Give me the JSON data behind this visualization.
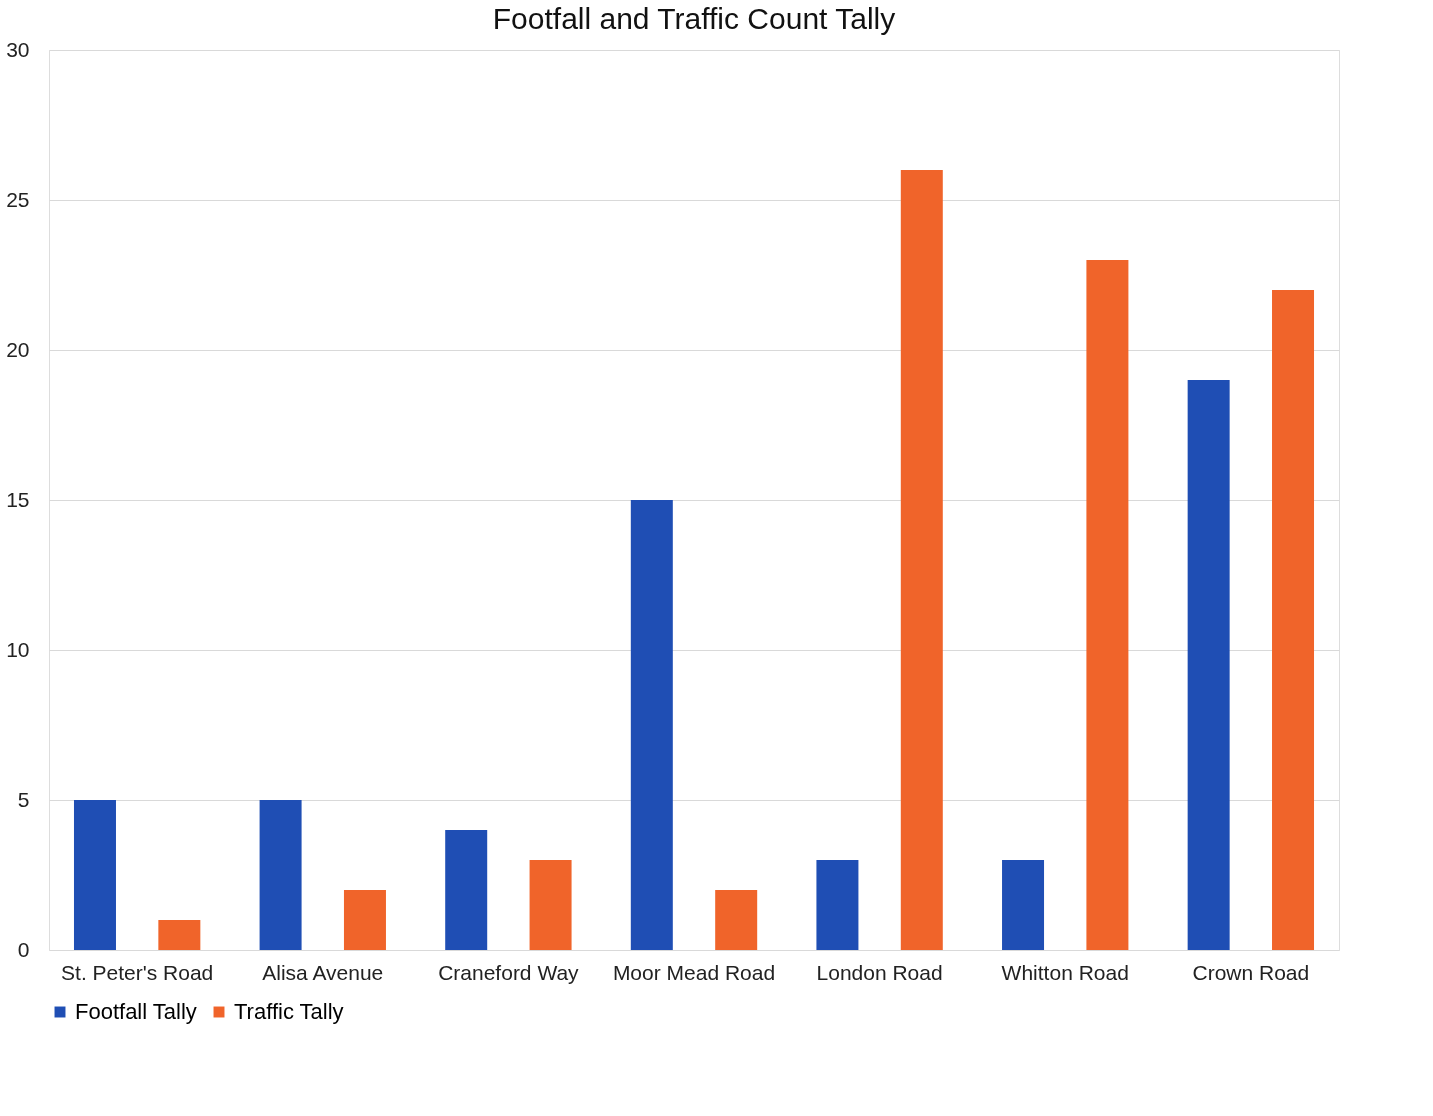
{
  "chart_data": {
    "type": "bar",
    "title": "Footfall and Traffic Count Tally",
    "categories": [
      "St. Peter's Road",
      "Alisa Avenue",
      "Craneford Way",
      "Moor Mead Road",
      "London Road",
      "Whitton Road",
      "Crown Road"
    ],
    "series": [
      {
        "name": "Footfall Tally",
        "color": "#1f4eb4",
        "values": [
          5,
          5,
          4,
          15,
          3,
          3,
          19
        ]
      },
      {
        "name": "Traffic Tally",
        "color": "#f0642a",
        "values": [
          1,
          2,
          3,
          2,
          26,
          23,
          22
        ]
      }
    ],
    "ylim": [
      0,
      30
    ],
    "yticks": [
      0,
      5,
      10,
      15,
      20,
      25,
      30
    ],
    "grid": "y",
    "legend": "bottom"
  }
}
